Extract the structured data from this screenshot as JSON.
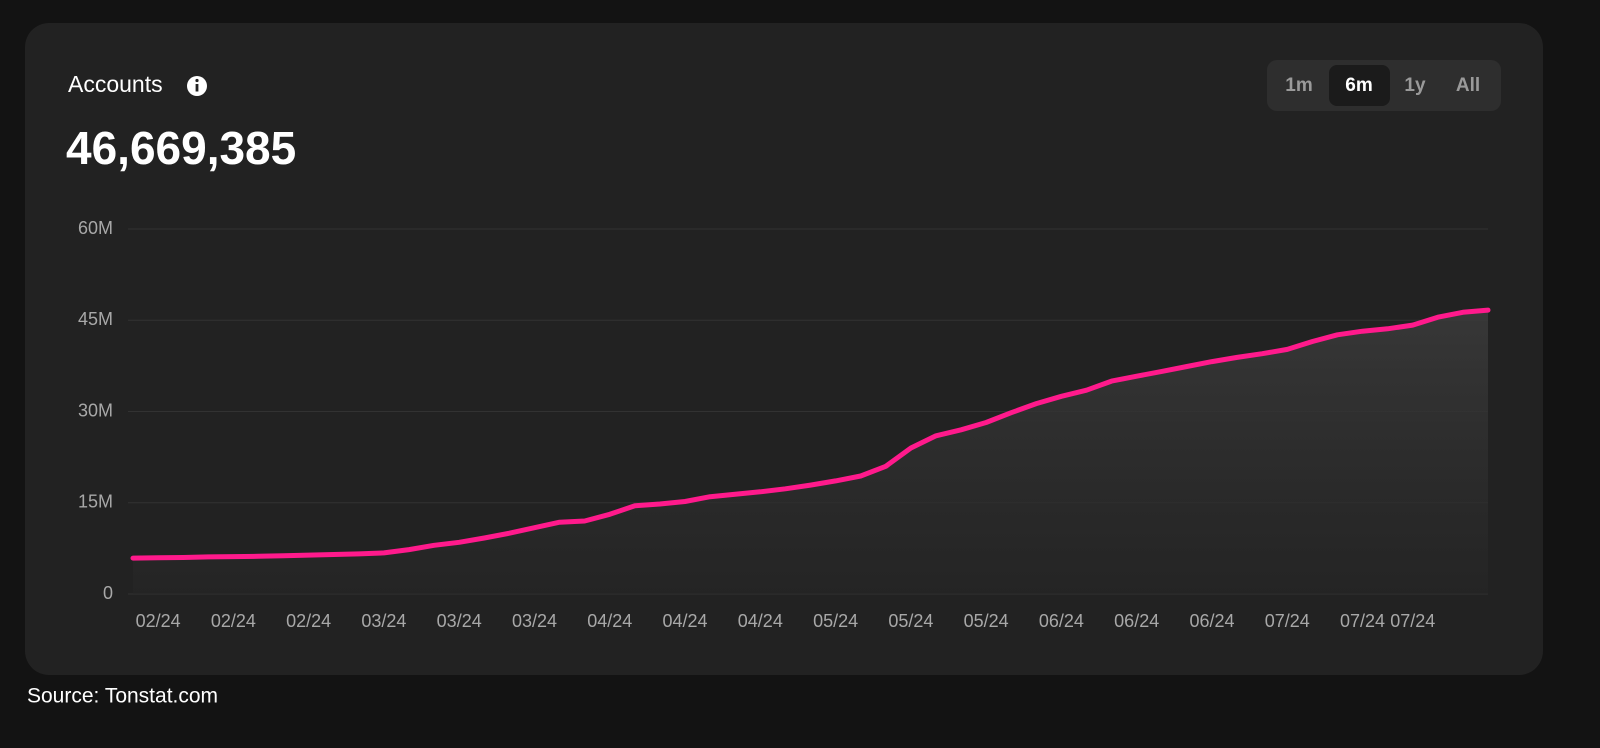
{
  "chart_data": {
    "type": "line",
    "title": "Accounts",
    "subtitle": "46,669,385",
    "categories": [
      null,
      "02/24",
      null,
      null,
      "02/24",
      null,
      null,
      "02/24",
      null,
      null,
      "03/24",
      null,
      null,
      "03/24",
      null,
      null,
      "03/24",
      null,
      null,
      "04/24",
      null,
      null,
      "04/24",
      null,
      null,
      "04/24",
      null,
      null,
      "05/24",
      null,
      null,
      "05/24",
      null,
      null,
      "05/24",
      null,
      null,
      "06/24",
      null,
      null,
      "06/24",
      null,
      null,
      "06/24",
      null,
      null,
      "07/24",
      null,
      null,
      "07/24",
      null,
      "07/24",
      null,
      null,
      null
    ],
    "values": [
      5.9,
      5.95,
      6.0,
      6.1,
      6.15,
      6.2,
      6.3,
      6.4,
      6.5,
      6.6,
      6.75,
      7.3,
      8.0,
      8.5,
      9.2,
      10.0,
      10.9,
      11.8,
      12.0,
      13.1,
      14.5,
      14.8,
      15.2,
      16.0,
      16.4,
      16.8,
      17.3,
      17.9,
      18.6,
      19.4,
      21.0,
      24.0,
      26.0,
      27.0,
      28.2,
      29.8,
      31.3,
      32.5,
      33.5,
      35.0,
      35.8,
      36.6,
      37.4,
      38.2,
      38.9,
      39.5,
      40.2,
      41.5,
      42.6,
      43.2,
      43.6,
      44.2,
      45.5,
      46.3,
      46.669385
    ],
    "color": "#ff1a8c",
    "ylim": [
      0,
      60
    ],
    "yticks": [
      0,
      {
        "value": 15,
        "label": "15M"
      },
      {
        "value": 30,
        "label": "30M"
      },
      {
        "value": 45,
        "label": "45M"
      },
      {
        "value": 60,
        "label": "60M"
      }
    ],
    "grid": true
  },
  "tabs": [
    "1m",
    "6m",
    "1y",
    "All"
  ],
  "source": "Source: Tonstat.com"
}
